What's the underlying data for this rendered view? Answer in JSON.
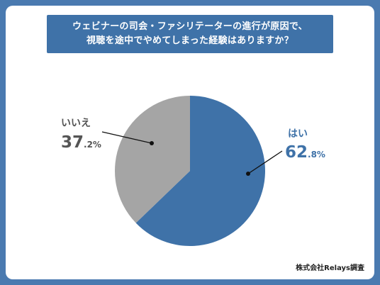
{
  "title": {
    "line1": "ウェビナーの司会・ファシリテーターの進行が原因で、",
    "line2": "視聴を途中でやめてしまった経験はありますか？"
  },
  "credit": "株式会社Relays調査",
  "colors": {
    "background": "#4a7ab0",
    "title_bg": "#3f72a8",
    "yes": "#3f72a8",
    "no": "#a5a5a5"
  },
  "chart_data": {
    "type": "pie",
    "title": "ウェビナーの司会・ファシリテーターの進行が原因で、視聴を途中でやめてしまった経験はありますか？",
    "slices": [
      {
        "label": "はい",
        "value": 62.8,
        "int": "62",
        "dec": ".8%",
        "color": "#3f72a8"
      },
      {
        "label": "いいえ",
        "value": 37.2,
        "int": "37",
        "dec": ".2%",
        "color": "#a5a5a5"
      }
    ]
  }
}
